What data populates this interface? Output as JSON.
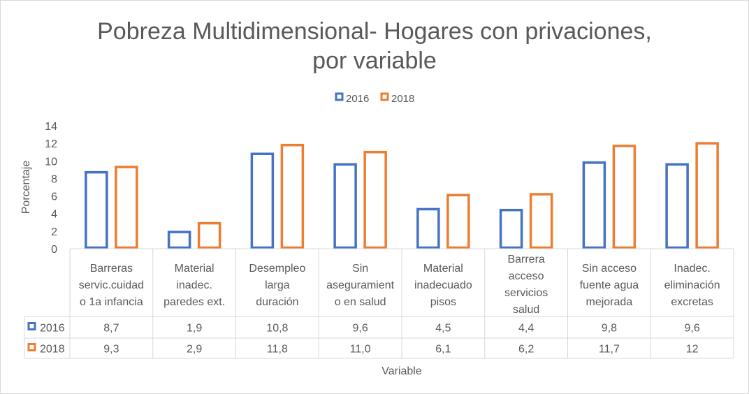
{
  "chart_data": {
    "type": "bar",
    "title": "Pobreza Multidimensional- Hogares con privaciones, por variable",
    "title_lines": [
      "Pobreza Multidimensional- Hogares con privaciones,",
      "por variable"
    ],
    "xlabel": "Variable",
    "ylabel": "Porcentaje",
    "ylim": [
      0,
      14
    ],
    "yticks": [
      "0",
      "2",
      "4",
      "6",
      "8",
      "10",
      "12",
      "14"
    ],
    "grid": false,
    "legend_position": "top",
    "categories": [
      [
        "Barreras",
        "servic.cuidad",
        "o 1a infancia"
      ],
      [
        "Material",
        "inadec.",
        "paredes ext."
      ],
      [
        "Desempleo",
        "larga",
        "duración"
      ],
      [
        "Sin",
        "aseguramient",
        "o en salud"
      ],
      [
        "Material",
        "inadecuado",
        "pisos"
      ],
      [
        "Barrera",
        "acceso",
        "servicios",
        "salud"
      ],
      [
        "Sin acceso",
        "fuente agua",
        "mejorada"
      ],
      [
        "Inadec.",
        "eliminación",
        "excretas"
      ]
    ],
    "series": [
      {
        "name": "2016",
        "color": "#4472c4",
        "values": [
          8.7,
          1.9,
          10.8,
          9.6,
          4.5,
          4.4,
          9.8,
          9.6
        ],
        "labels": [
          "8,7",
          "1,9",
          "10,8",
          "9,6",
          "4,5",
          "4,4",
          "9,8",
          "9,6"
        ]
      },
      {
        "name": "2018",
        "color": "#ed7d31",
        "values": [
          9.3,
          2.9,
          11.8,
          11.0,
          6.1,
          6.2,
          11.7,
          12
        ],
        "labels": [
          "9,3",
          "2,9",
          "11,8",
          "11,0",
          "6,1",
          "6,2",
          "11,7",
          "12"
        ]
      }
    ],
    "data_table": true
  }
}
